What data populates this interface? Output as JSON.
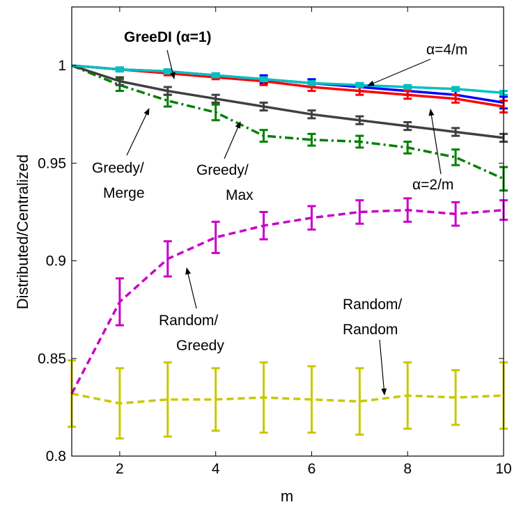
{
  "chart_data": {
    "type": "line",
    "xlabel": "m",
    "ylabel": "Distributed/Centralized",
    "xlim": [
      1,
      10
    ],
    "ylim": [
      0.8,
      1.03
    ],
    "xticks": [
      "2",
      "4",
      "6",
      "8",
      "10"
    ],
    "yticks": [
      "0.8",
      "0.85",
      "0.9",
      "0.95",
      "1"
    ],
    "x": [
      1,
      2,
      3,
      4,
      5,
      6,
      7,
      8,
      9,
      10
    ],
    "series": [
      {
        "id": "random-random",
        "color": "#c8c800",
        "dash": "dashed",
        "values": [
          0.832,
          0.827,
          0.829,
          0.829,
          0.83,
          0.829,
          0.828,
          0.831,
          0.83,
          0.831
        ],
        "errors": [
          0.017,
          0.018,
          0.019,
          0.016,
          0.018,
          0.017,
          0.017,
          0.017,
          0.014,
          0.017
        ]
      },
      {
        "id": "random-greedy",
        "color": "#c800c8",
        "dash": "dashed",
        "values": [
          0.832,
          0.879,
          0.901,
          0.912,
          0.918,
          0.922,
          0.925,
          0.926,
          0.924,
          0.926
        ],
        "errors": [
          0.0,
          0.012,
          0.009,
          0.008,
          0.007,
          0.006,
          0.006,
          0.006,
          0.006,
          0.005
        ]
      },
      {
        "id": "greedy-max",
        "color": "#008000",
        "dash": "dashdot",
        "values": [
          1.0,
          0.99,
          0.982,
          0.976,
          0.964,
          0.962,
          0.961,
          0.958,
          0.953,
          0.942
        ],
        "errors": [
          0.0,
          0.003,
          0.003,
          0.004,
          0.003,
          0.003,
          0.003,
          0.003,
          0.004,
          0.006
        ]
      },
      {
        "id": "greedy-merge",
        "color": "#404040",
        "dash": "solid",
        "values": [
          1.0,
          0.992,
          0.987,
          0.983,
          0.979,
          0.975,
          0.972,
          0.969,
          0.966,
          0.963
        ],
        "errors": [
          0.0,
          0.002,
          0.002,
          0.002,
          0.002,
          0.002,
          0.002,
          0.002,
          0.002,
          0.002
        ]
      },
      {
        "id": "greedi-alpha-1",
        "color": "#0000ff",
        "dash": "solid",
        "values": [
          1.0,
          0.998,
          0.997,
          0.995,
          0.993,
          0.991,
          0.989,
          0.987,
          0.985,
          0.981
        ],
        "errors": [
          0.0,
          0.001,
          0.001,
          0.001,
          0.002,
          0.002,
          0.002,
          0.002,
          0.002,
          0.003
        ]
      },
      {
        "id": "greedi-alpha-2m",
        "color": "#ff0000",
        "dash": "solid",
        "values": [
          1.0,
          0.998,
          0.996,
          0.994,
          0.992,
          0.989,
          0.987,
          0.985,
          0.983,
          0.979
        ],
        "errors": [
          0.0,
          0.001,
          0.001,
          0.001,
          0.002,
          0.002,
          0.002,
          0.002,
          0.002,
          0.003
        ]
      },
      {
        "id": "greedi-alpha-4m",
        "color": "#00c0c0",
        "dash": "solid",
        "values": [
          1.0,
          0.998,
          0.997,
          0.995,
          0.993,
          0.991,
          0.99,
          0.989,
          0.988,
          0.986
        ],
        "errors": [
          0.0,
          0.001,
          0.001,
          0.001,
          0.001,
          0.001,
          0.001,
          0.001,
          0.001,
          0.001
        ]
      }
    ],
    "annotations": {
      "greedi_label": "GreeDI (α=1)",
      "alpha4m_label": "α=4/m",
      "alpha2m_label": "α=2/m",
      "greedy_merge_1": "Greedy/",
      "greedy_merge_2": "Merge",
      "greedy_max_1": "Greedy/",
      "greedy_max_2": "Max",
      "random_greedy_1": "Random/",
      "random_greedy_2": "Greedy",
      "random_random_1": "Random/",
      "random_random_2": "Random"
    },
    "grid": false,
    "legend": "none"
  }
}
